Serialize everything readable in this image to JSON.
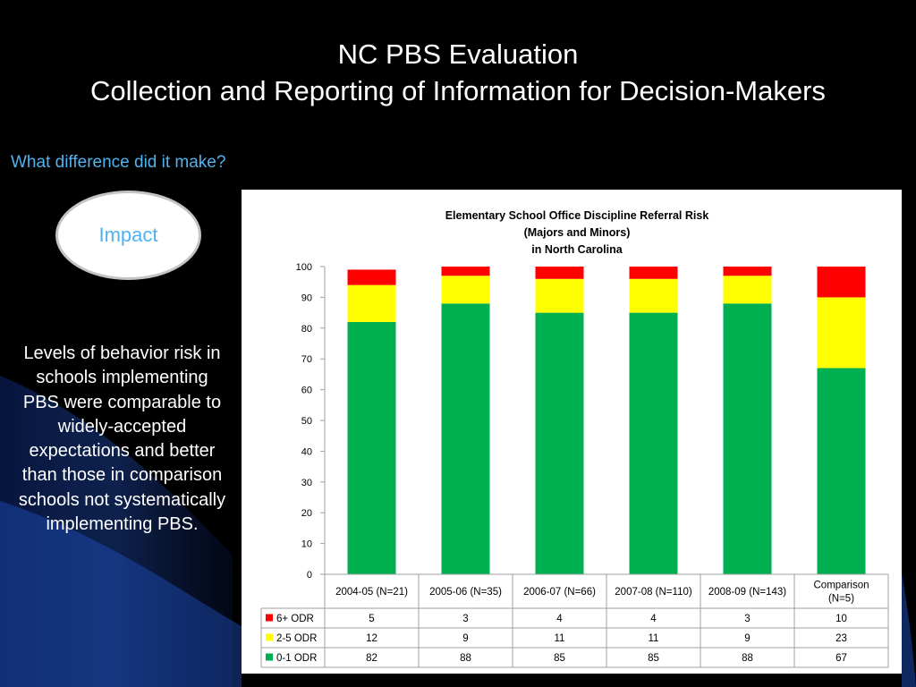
{
  "slide": {
    "title_line1": "NC PBS Evaluation",
    "title_line2": "Collection and Reporting of Information for Decision-Makers",
    "subtitle": "What difference did it make?",
    "impact_label": "Impact",
    "body_text": "Levels of behavior risk in schools implementing PBS were comparable to widely-accepted expectations and better than those in comparison schools not systematically implementing PBS."
  },
  "chart_data": {
    "type": "bar",
    "stacked": true,
    "title_lines": [
      "Elementary School Office Discipline Referral Risk",
      "(Majors and Minors)",
      "in North Carolina"
    ],
    "categories": [
      "2004-05 (N=21)",
      "2005-06 (N=35)",
      "2006-07 (N=66)",
      "2007-08 (N=110)",
      "2008-09 (N=143)",
      "Comparison (N=5)"
    ],
    "category_lines": [
      [
        "2004-05 (N=21)"
      ],
      [
        "2005-06 (N=35)"
      ],
      [
        "2006-07 (N=66)"
      ],
      [
        "2007-08 (N=110)"
      ],
      [
        "2008-09 (N=143)"
      ],
      [
        "Comparison",
        "(N=5)"
      ]
    ],
    "series": [
      {
        "name": "0-1 ODR",
        "color": "#00b050",
        "values": [
          82,
          88,
          85,
          85,
          88,
          67
        ]
      },
      {
        "name": "2-5 ODR",
        "color": "#ffff00",
        "values": [
          12,
          9,
          11,
          11,
          9,
          23
        ]
      },
      {
        "name": "6+ ODR",
        "color": "#ff0000",
        "values": [
          5,
          3,
          4,
          4,
          3,
          10
        ]
      }
    ],
    "ylim": [
      0,
      100
    ],
    "yticks": [
      0,
      10,
      20,
      30,
      40,
      50,
      60,
      70,
      80,
      90,
      100
    ],
    "data_table": true,
    "table_row_order": [
      "6+ ODR",
      "2-5 ODR",
      "0-1 ODR"
    ]
  }
}
